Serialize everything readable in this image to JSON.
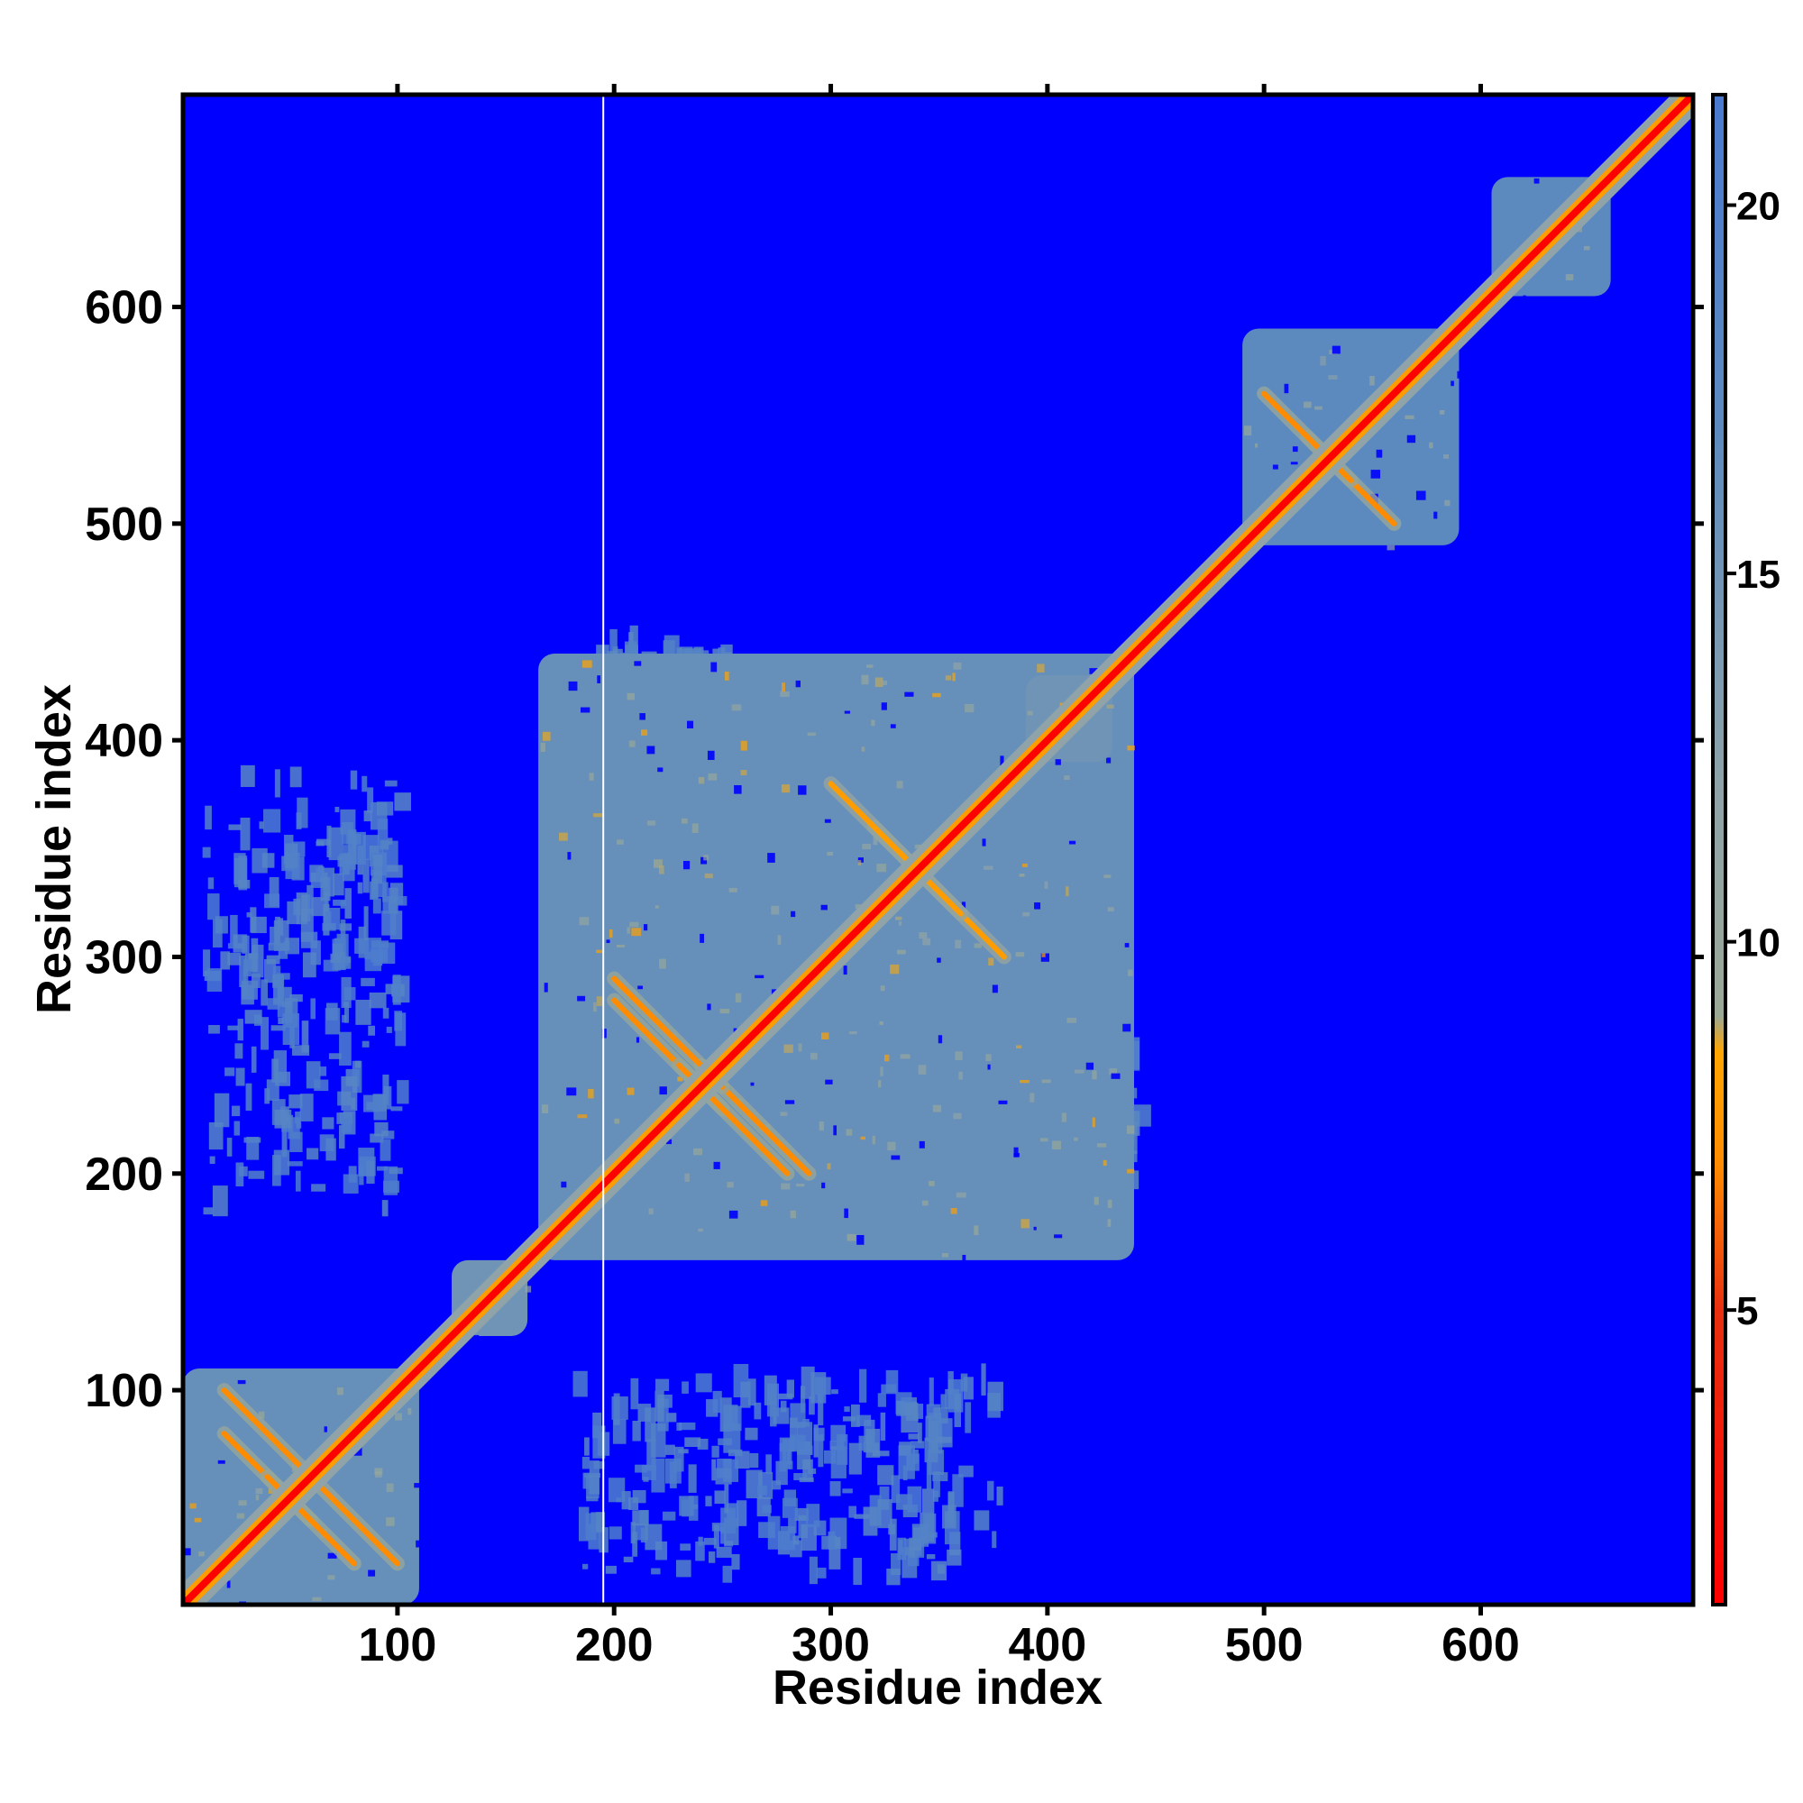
{
  "chart_data": {
    "type": "heatmap",
    "title": "",
    "xlabel": "Residue index",
    "ylabel": "Residue index",
    "xlim": [
      1,
      698
    ],
    "ylim": [
      1,
      698
    ],
    "x_ticks": [
      100,
      200,
      300,
      400,
      500,
      600
    ],
    "y_ticks": [
      100,
      200,
      300,
      400,
      500,
      600
    ],
    "grid": false,
    "colorbar": {
      "placement": "right",
      "range": [
        1,
        21.5
      ],
      "ticks": [
        5,
        10,
        15,
        20
      ],
      "colors": {
        "near": "#ff0000",
        "mid": "#ff8c00",
        "contact": "#f0c020",
        "medium": "#9aa896",
        "far": "#5c8abf",
        "background": "#0000ff"
      },
      "stops": [
        {
          "value": 1,
          "color": "#ff0000"
        },
        {
          "value": 5,
          "color": "#e83010"
        },
        {
          "value": 7,
          "color": "#ff8c00"
        },
        {
          "value": 8.5,
          "color": "#ffa500"
        },
        {
          "value": 9,
          "color": "#9aa896"
        },
        {
          "value": 12,
          "color": "#8fa3a8"
        },
        {
          "value": 17,
          "color": "#5c8abf"
        },
        {
          "value": 21.5,
          "color": "#4a7ad0"
        }
      ]
    },
    "gap_line_residue": 195,
    "domain_blocks": [
      {
        "x": [
          1,
          110
        ],
        "y": [
          1,
          110
        ],
        "value": 16
      },
      {
        "x": [
          165,
          440
        ],
        "y": [
          160,
          440
        ],
        "value": 16
      },
      {
        "x": [
          490,
          590
        ],
        "y": [
          490,
          590
        ],
        "value": 17
      },
      {
        "x": [
          605,
          660
        ],
        "y": [
          605,
          660
        ],
        "value": 17
      },
      {
        "x": [
          390,
          430
        ],
        "y": [
          390,
          430
        ],
        "value": 15
      },
      {
        "x": [
          125,
          160
        ],
        "y": [
          125,
          160
        ],
        "value": 15
      }
    ],
    "sparse_patches": [
      {
        "x": [
          10,
          100
        ],
        "y": [
          180,
          360
        ],
        "value": 18
      },
      {
        "x": [
          190,
          380
        ],
        "y": [
          20,
          100
        ],
        "value": 18
      },
      {
        "x": [
          380,
          440
        ],
        "y": [
          190,
          250
        ],
        "value": 17
      }
    ],
    "secondary_diagonals": [
      {
        "x": [
          20,
          60
        ],
        "y": [
          40,
          80
        ],
        "value": 7
      },
      {
        "x": [
          60,
          100
        ],
        "y": [
          20,
          60
        ],
        "value": 7
      },
      {
        "x": [
          200,
          250
        ],
        "y": [
          230,
          280
        ],
        "value": 7
      },
      {
        "x": [
          240,
          290
        ],
        "y": [
          200,
          250
        ],
        "value": 7
      },
      {
        "x": [
          320,
          380
        ],
        "y": [
          300,
          360
        ],
        "value": 8
      },
      {
        "x": [
          520,
          560
        ],
        "y": [
          500,
          540
        ],
        "value": 7
      }
    ]
  }
}
